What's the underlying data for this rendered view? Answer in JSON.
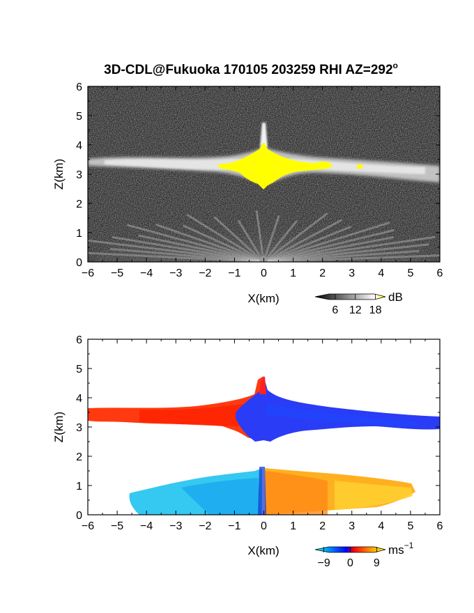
{
  "title": "3D-CDL@Fukuoka 170105 203259 RHI AZ=292",
  "title_superscript": "o",
  "chart_data": [
    {
      "type": "heatmap",
      "name": "reflectivity",
      "xlabel": "X(km)",
      "ylabel": "Z(km)",
      "xlim": [
        -6,
        6
      ],
      "ylim": [
        0,
        6
      ],
      "xticks": [
        "−6",
        "−5",
        "−4",
        "−3",
        "−2",
        "−1",
        "0",
        "1",
        "2",
        "3",
        "4",
        "5",
        "6"
      ],
      "yticks": [
        "0",
        "1",
        "2",
        "3",
        "4",
        "5",
        "6"
      ],
      "colorbar": {
        "unit": "dB",
        "ticks": [
          "6",
          "12",
          "18"
        ],
        "range": [
          0,
          21
        ]
      },
      "features": {
        "cloud_layer_z_km": [
          2.9,
          3.6
        ],
        "peak_x_km": 0.1,
        "peak_top_z_km": 4.8,
        "saturated_color": "#ffff00",
        "background_color": "#2b2b2b"
      }
    },
    {
      "type": "heatmap",
      "name": "doppler_velocity",
      "xlabel": "X(km)",
      "ylabel": "Z(km)",
      "xlim": [
        -6,
        6
      ],
      "ylim": [
        0,
        6
      ],
      "xticks": [
        "−6",
        "−5",
        "−4",
        "−3",
        "−2",
        "−1",
        "0",
        "1",
        "2",
        "3",
        "4",
        "5",
        "6"
      ],
      "yticks": [
        "0",
        "1",
        "2",
        "3",
        "4",
        "5",
        "6"
      ],
      "colorbar": {
        "unit": "ms",
        "unit_superscript": "−1",
        "ticks": [
          "−9",
          "0",
          "9"
        ],
        "range": [
          -12,
          12
        ]
      },
      "features": {
        "upper_layer_z_km": [
          2.5,
          3.7
        ],
        "upper_left_color": "#ff3300",
        "upper_right_color": "#2040ff",
        "lower_layer_z_km": [
          0,
          1.5
        ],
        "lower_left_color": "#20b8f0",
        "lower_right_color": "#ffa020"
      }
    }
  ]
}
